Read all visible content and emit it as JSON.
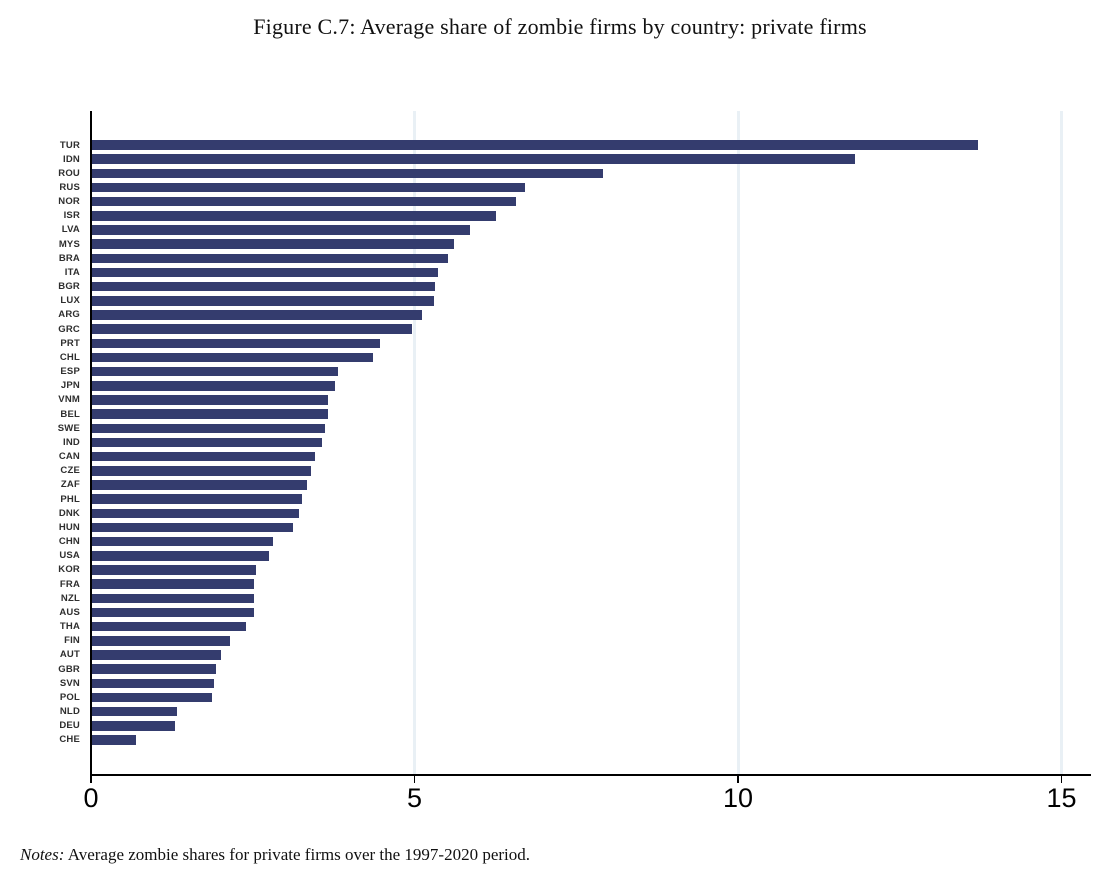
{
  "figure": {
    "title": "Figure C.7: Average share of zombie firms by country: private firms",
    "notes_label": "Notes:",
    "notes_text": " Average zombie shares for private firms over the 1997-2020 period."
  },
  "colors": {
    "bar": "#343c6e",
    "gridline": "#e9f0f5",
    "axis": "#000000"
  },
  "chart_data": {
    "type": "bar",
    "orientation": "horizontal",
    "title": "Figure C.7: Average share of zombie firms by country: private firms",
    "xlabel": "",
    "ylabel": "",
    "xlim": [
      0,
      15.5
    ],
    "xticks": [
      0,
      5,
      10,
      15
    ],
    "grid": "vertical-light-gridlines-at-5-10-15",
    "legend": "none",
    "categories": [
      "TUR",
      "IDN",
      "ROU",
      "RUS",
      "NOR",
      "ISR",
      "LVA",
      "MYS",
      "BRA",
      "ITA",
      "BGR",
      "LUX",
      "ARG",
      "GRC",
      "PRT",
      "CHL",
      "ESP",
      "JPN",
      "VNM",
      "BEL",
      "SWE",
      "IND",
      "CAN",
      "CZE",
      "ZAF",
      "PHL",
      "DNK",
      "HUN",
      "CHN",
      "USA",
      "KOR",
      "FRA",
      "NZL",
      "AUS",
      "THA",
      "FIN",
      "AUT",
      "GBR",
      "SVN",
      "POL",
      "NLD",
      "DEU",
      "CHE"
    ],
    "values": [
      13.7,
      11.8,
      7.9,
      6.7,
      6.55,
      6.25,
      5.85,
      5.6,
      5.5,
      5.35,
      5.3,
      5.28,
      5.1,
      4.95,
      4.45,
      4.35,
      3.8,
      3.75,
      3.65,
      3.65,
      3.6,
      3.55,
      3.45,
      3.38,
      3.32,
      3.25,
      3.2,
      3.1,
      2.8,
      2.74,
      2.53,
      2.51,
      2.5,
      2.5,
      2.38,
      2.14,
      2.0,
      1.91,
      1.88,
      1.85,
      1.32,
      1.28,
      0.68
    ]
  }
}
